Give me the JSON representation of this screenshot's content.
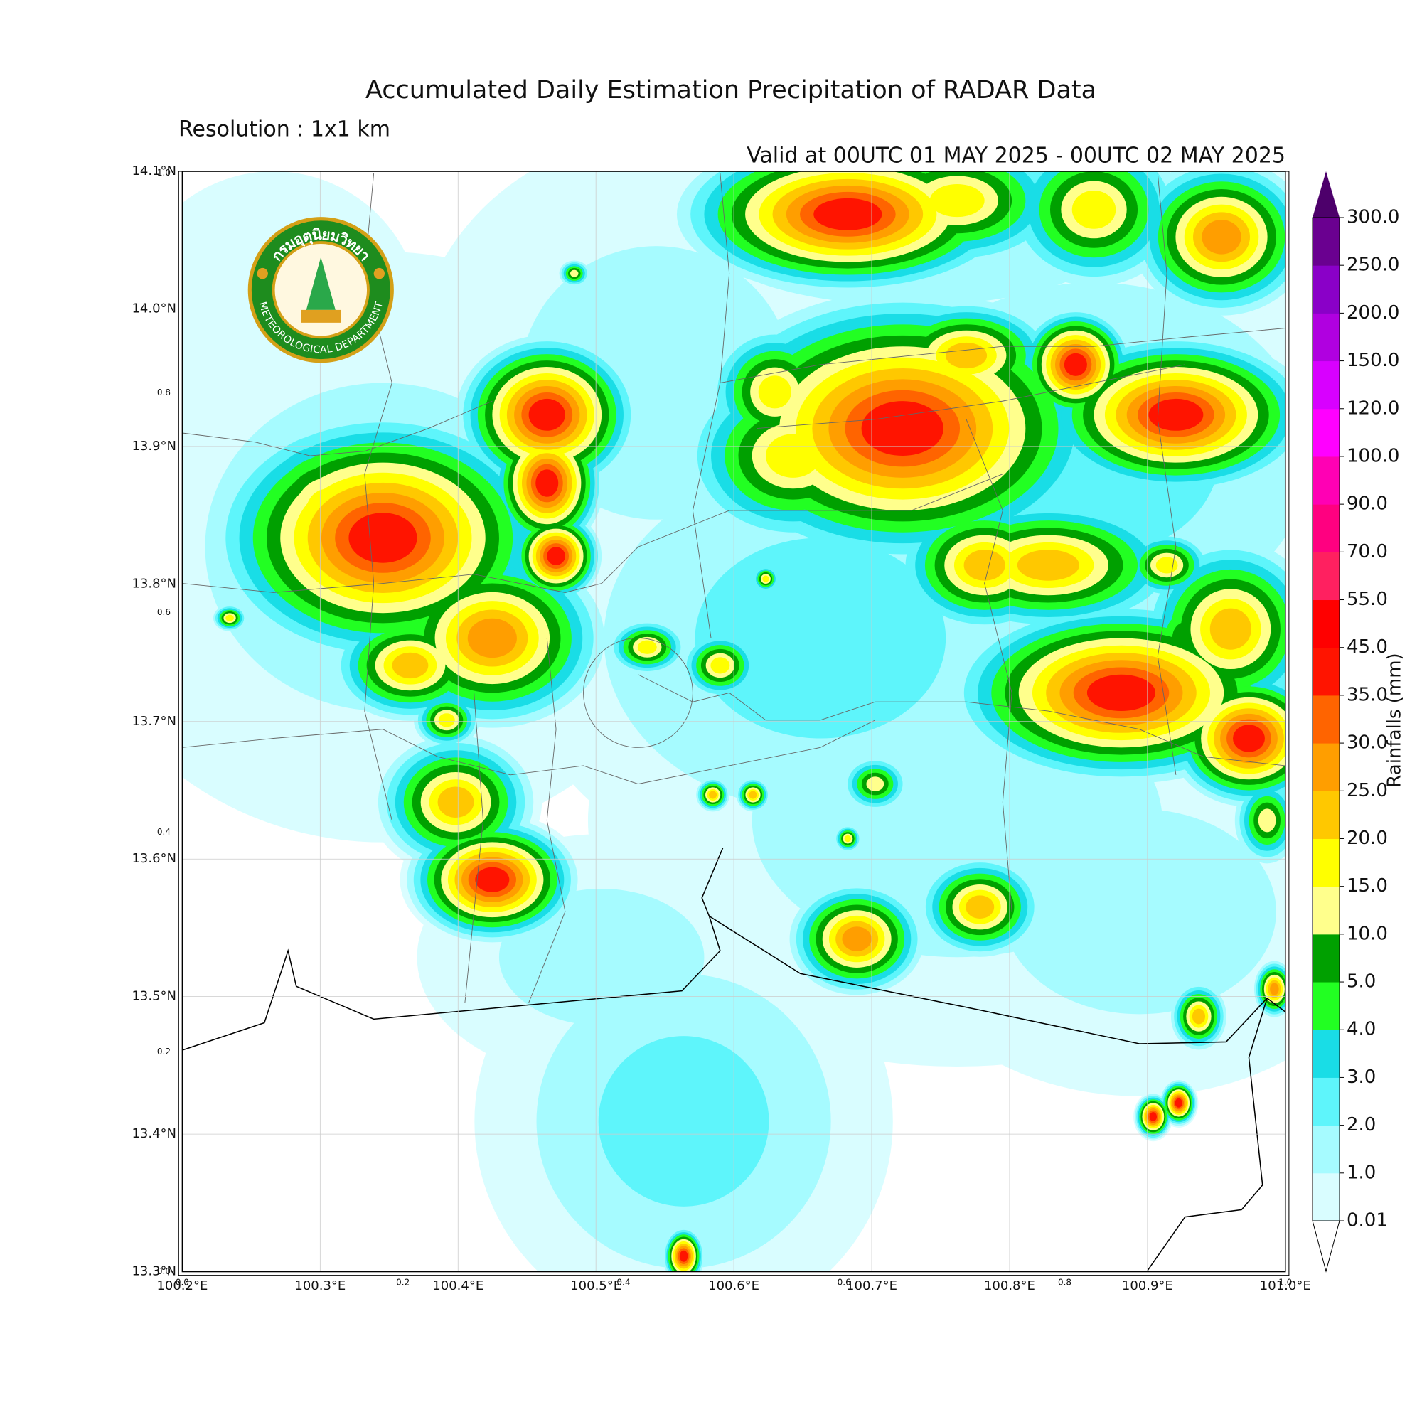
{
  "header": {
    "title": "Accumulated Daily Estimation Precipitation of RADAR Data",
    "resolution": "Resolution : 1x1 km",
    "valid": "Valid at 00UTC 01 MAY 2025 - 00UTC 02 MAY 2025"
  },
  "logo": {
    "thai": "กรมอุตุนิยมวิทยา",
    "english": "METEOROLOGICAL DEPARTMENT"
  },
  "map": {
    "lon_labels": [
      "100.2°E",
      "100.3°E",
      "100.4°E",
      "100.5°E",
      "100.6°E",
      "100.7°E",
      "100.8°E",
      "100.9°E",
      "101.0°E"
    ],
    "lat_labels": [
      "13.3°N",
      "13.4°N",
      "13.5°N",
      "13.6°N",
      "13.7°N",
      "13.8°N",
      "13.9°N",
      "14.0°N",
      "14.1°N"
    ],
    "frame_x_labels": [
      "0.0",
      "0.2",
      "0.4",
      "0.6",
      "0.8",
      "1.0"
    ],
    "frame_y_labels": [
      "0.0",
      "0.2",
      "0.4",
      "0.6",
      "0.8",
      "1.0"
    ]
  },
  "colorbar": {
    "label": "Rainfalls (mm)",
    "ticks": [
      "0.01",
      "1.0",
      "2.0",
      "3.0",
      "4.0",
      "5.0",
      "10.0",
      "15.0",
      "20.0",
      "25.0",
      "30.0",
      "35.0",
      "45.0",
      "55.0",
      "70.0",
      "90.0",
      "100.0",
      "120.0",
      "150.0",
      "200.0",
      "250.0",
      "300.0"
    ],
    "colors": [
      "#d9fdff",
      "#a6fbff",
      "#5ef5fb",
      "#19dde6",
      "#22ff22",
      "#00a000",
      "#ffff8c",
      "#ffff00",
      "#ffc800",
      "#ff9e00",
      "#ff6400",
      "#ff1400",
      "#ff0000",
      "#ff2060",
      "#ff0080",
      "#ff00b4",
      "#ff00ff",
      "#d800ff",
      "#b000e0",
      "#8a00c8",
      "#6a0090"
    ],
    "over_color": "#4d006b",
    "under_color": "#ffffff"
  }
}
